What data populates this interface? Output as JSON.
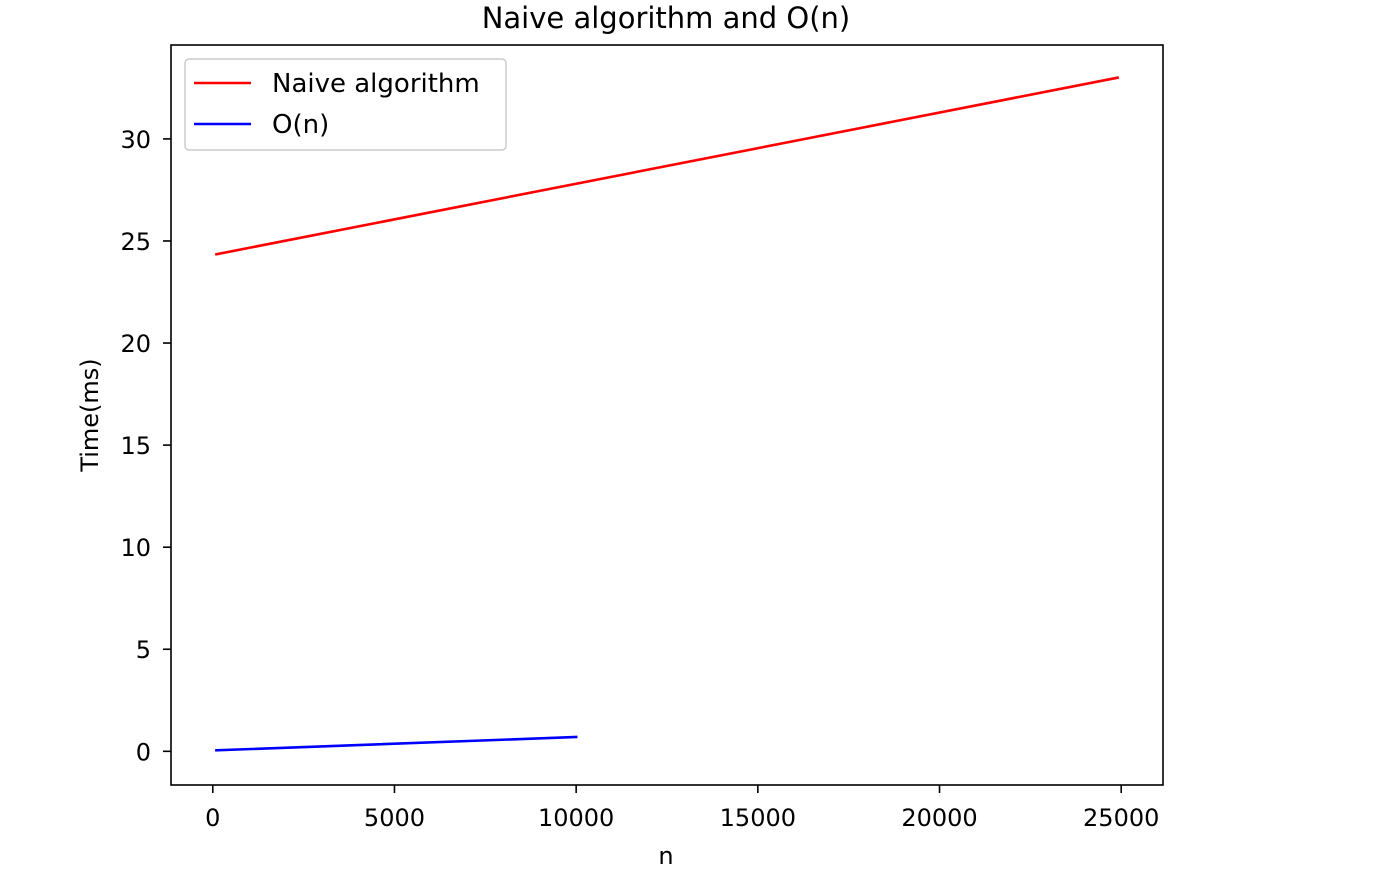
{
  "chart_data": {
    "type": "line",
    "title": "Naive algorithm and O(n)",
    "xlabel": "n",
    "ylabel": "Time(ms)",
    "xlim": [
      -1150,
      26150
    ],
    "ylim": [
      -1.65,
      34.6
    ],
    "xticks": [
      0,
      5000,
      10000,
      15000,
      20000,
      25000
    ],
    "yticks": [
      0,
      5,
      10,
      15,
      20,
      25,
      30
    ],
    "grid": false,
    "legend_position": "upper left",
    "series": [
      {
        "name": "Naive algorithm",
        "color": "#ff0000",
        "x": [
          100,
          24900
        ],
        "y": [
          24.35,
          33.0
        ]
      },
      {
        "name": "O(n)",
        "color": "#0000ff",
        "x": [
          100,
          10000
        ],
        "y": [
          0.05,
          0.7
        ]
      }
    ]
  }
}
